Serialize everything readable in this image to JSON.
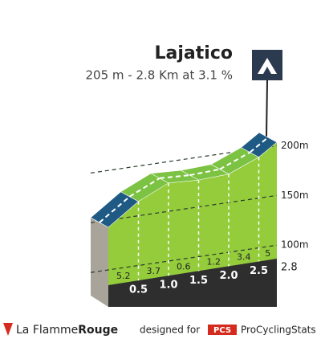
{
  "chart_data": {
    "type": "profile",
    "title": "Lajatico",
    "subtitle": "205 m - 2.8 Km at 3.1 %",
    "x": [
      0,
      0.5,
      1.0,
      1.5,
      2.0,
      2.5,
      2.8
    ],
    "values": [
      118,
      144,
      162.5,
      165.5,
      171.5,
      188.5,
      203.5
    ],
    "gradients": [
      5.2,
      3.7,
      0.6,
      1.2,
      3.4,
      5.0
    ],
    "colors": [
      "#1f5a85",
      "#7cc243",
      "#7cc243",
      "#7cc243",
      "#7cc243",
      "#1f5a85"
    ],
    "xlim": [
      0,
      2.8
    ],
    "xticks": [
      0.5,
      {
        "value": 1,
        "label": "1.0"
      },
      1.5,
      {
        "value": 2,
        "label": "2.0"
      },
      2.5,
      2.8
    ],
    "ylim": [
      80,
      210
    ],
    "yticks": [
      {
        "value": 100,
        "label": "100m"
      },
      {
        "value": 150,
        "label": "150m"
      },
      {
        "value": 200,
        "label": "200m"
      }
    ],
    "grid": true
  },
  "footer": {
    "brand_a": "La Flamme",
    "brand_b": "Rouge",
    "designed": "designed for",
    "badge": "PCS",
    "site": "ProCyclingStats"
  }
}
